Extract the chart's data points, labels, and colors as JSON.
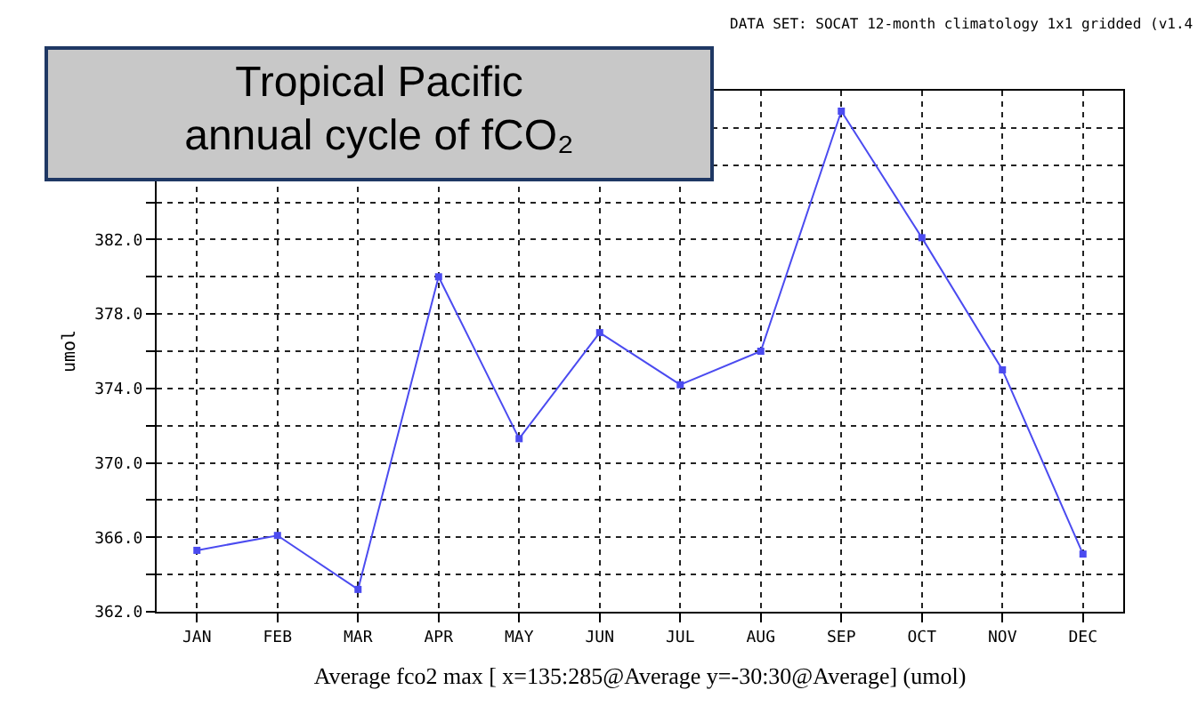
{
  "chart_data": {
    "type": "line",
    "title": "Tropical Pacific annual cycle of fCO₂",
    "subtitle": "DATA SET: SOCAT 12-month climatology 1x1 gridded (v1.4",
    "xlabel": "Average fco2 max [ x=135:285@Average y=-30:30@Average] (umol)",
    "ylabel": "umol",
    "categories": [
      "JAN",
      "FEB",
      "MAR",
      "APR",
      "MAY",
      "JUN",
      "JUL",
      "AUG",
      "SEP",
      "OCT",
      "NOV",
      "DEC"
    ],
    "series": [
      {
        "color": "#4b4bf0",
        "values": [
          365.3,
          366.1,
          363.2,
          380.0,
          371.3,
          377.0,
          374.2,
          376.0,
          388.9,
          382.1,
          375.0,
          365.1
        ]
      }
    ],
    "ylim": [
      362,
      390
    ],
    "yticks": [
      {
        "value": 362,
        "label": "362.0"
      },
      {
        "value": 364,
        "label": null
      },
      {
        "value": 366,
        "label": "366.0"
      },
      {
        "value": 368,
        "label": null
      },
      {
        "value": 370,
        "label": "370.0"
      },
      {
        "value": 372,
        "label": null
      },
      {
        "value": 374,
        "label": "374.0"
      },
      {
        "value": 376,
        "label": null
      },
      {
        "value": 378,
        "label": "378.0"
      },
      {
        "value": 380,
        "label": null
      },
      {
        "value": 382,
        "label": "382.0"
      },
      {
        "value": 384,
        "label": null
      },
      {
        "value": 386,
        "label": null
      },
      {
        "value": 388,
        "label": null
      },
      {
        "value": 390,
        "label": null
      }
    ],
    "grid": true,
    "marker": "square",
    "line_style": "solid"
  }
}
